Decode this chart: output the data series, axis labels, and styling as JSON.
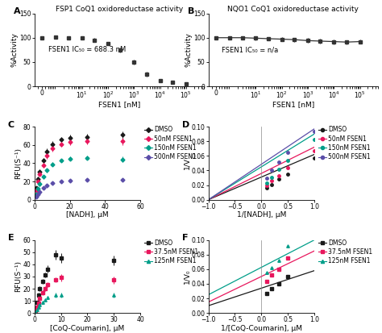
{
  "panel_A": {
    "title": "FSP1 CoQ1 oxidoreductase activity",
    "annotation": "FSEN1 IC₅₀ = 688.3 nM",
    "xlabel": "FSEN1 [nM]",
    "ylabel": "%Activity",
    "ylim": [
      0,
      150
    ],
    "yticks": [
      0,
      50,
      100,
      150
    ],
    "color": "#333333",
    "x_data": [
      0.3,
      1,
      3,
      10,
      30,
      100,
      300,
      1000,
      3000,
      10000,
      30000,
      100000
    ],
    "y_data": [
      100,
      101,
      100,
      99,
      95,
      88,
      75,
      50,
      25,
      12,
      8,
      5
    ],
    "y_err": [
      3,
      3,
      3,
      3,
      4,
      4,
      5,
      5,
      5,
      4,
      3,
      3
    ],
    "ic50": 688.3
  },
  "panel_B": {
    "title": "NQO1 CoQ1 oxidoreductase activity",
    "annotation": "FSEN1 IC₅₀ = n/a",
    "xlabel": "FSEN1 [nM]",
    "ylabel": "%Activity",
    "ylim": [
      0,
      150
    ],
    "yticks": [
      0,
      50,
      100,
      150
    ],
    "color": "#333333",
    "x_data": [
      0.3,
      1,
      3,
      10,
      30,
      100,
      300,
      1000,
      3000,
      10000,
      30000,
      100000
    ],
    "y_data": [
      100,
      100,
      100,
      99,
      98,
      97,
      96,
      94,
      93,
      92,
      91,
      92
    ],
    "y_err": [
      3,
      3,
      3,
      4,
      4,
      4,
      4,
      5,
      5,
      5,
      4,
      4
    ]
  },
  "panel_C": {
    "xlabel": "[NADH], μM",
    "ylabel": "RFU(S⁻¹)",
    "ylim": [
      0,
      80
    ],
    "xlim": [
      0,
      60
    ],
    "yticks": [
      0,
      20,
      40,
      60,
      80
    ],
    "series": [
      {
        "label": "DMSO",
        "color": "#1a1a1a",
        "marker": "D",
        "x": [
          1,
          2,
          3,
          5,
          7,
          10,
          15,
          20,
          30,
          50
        ],
        "y": [
          13,
          23,
          31,
          43,
          53,
          61,
          66,
          68,
          69,
          71
        ],
        "err": [
          2,
          2,
          2,
          3,
          3,
          3,
          3,
          3,
          3,
          4
        ]
      },
      {
        "label": "50nM FSEN1",
        "color": "#e8175d",
        "marker": "D",
        "x": [
          1,
          2,
          3,
          5,
          7,
          10,
          15,
          20,
          30,
          50
        ],
        "y": [
          10,
          20,
          28,
          38,
          48,
          56,
          61,
          63,
          64,
          64
        ],
        "err": [
          2,
          2,
          2,
          3,
          3,
          3,
          3,
          3,
          3,
          4
        ]
      },
      {
        "label": "150nM FSEN1",
        "color": "#009e89",
        "marker": "D",
        "x": [
          1,
          2,
          3,
          5,
          7,
          10,
          15,
          20,
          30,
          50
        ],
        "y": [
          6,
          12,
          17,
          25,
          32,
          39,
          43,
          45,
          46,
          44
        ],
        "err": [
          2,
          2,
          2,
          2,
          2,
          2,
          2,
          2,
          2,
          3
        ]
      },
      {
        "label": "500nM FSEN1",
        "color": "#5b4ea8",
        "marker": "D",
        "x": [
          1,
          2,
          3,
          5,
          7,
          10,
          15,
          20,
          30,
          50
        ],
        "y": [
          3,
          6,
          9,
          13,
          16,
          18,
          20,
          21,
          22,
          22
        ],
        "err": [
          1,
          1,
          1,
          1,
          1,
          1,
          1,
          1,
          2,
          2
        ]
      }
    ]
  },
  "panel_D": {
    "xlabel": "1/[NADH], μM",
    "ylabel": "1/V",
    "ylim": [
      0,
      0.1
    ],
    "xlim": [
      -1,
      1
    ],
    "yticks": [
      0,
      0.02,
      0.04,
      0.06,
      0.08,
      0.1
    ],
    "series": [
      {
        "label": "DMSO",
        "color": "#1a1a1a",
        "marker": "o",
        "x": [
          0.1,
          0.2,
          0.33,
          0.5,
          1.0
        ],
        "y": [
          0.016,
          0.021,
          0.028,
          0.035,
          0.057
        ],
        "line_x": [
          -1.0,
          1.0
        ],
        "line_y": [
          0.0,
          0.062
        ]
      },
      {
        "label": "50nM FSEN1",
        "color": "#e8175d",
        "marker": "o",
        "x": [
          0.1,
          0.2,
          0.33,
          0.5,
          1.0
        ],
        "y": [
          0.019,
          0.026,
          0.033,
          0.044,
          0.067
        ],
        "line_x": [
          -1.0,
          1.0
        ],
        "line_y": [
          0.0,
          0.072
        ]
      },
      {
        "label": "150nM FSEN1",
        "color": "#009e89",
        "marker": "o",
        "x": [
          0.1,
          0.2,
          0.33,
          0.5,
          1.0
        ],
        "y": [
          0.023,
          0.031,
          0.042,
          0.054,
          0.082
        ],
        "line_x": [
          -1.0,
          1.0
        ],
        "line_y": [
          0.0,
          0.09
        ]
      },
      {
        "label": "500nM FSEN1",
        "color": "#5b4ea8",
        "marker": "o",
        "x": [
          0.1,
          0.2,
          0.33,
          0.5,
          1.0
        ],
        "y": [
          0.03,
          0.04,
          0.052,
          0.065,
          0.093
        ],
        "line_x": [
          -1.0,
          1.0
        ],
        "line_y": [
          0.0,
          0.097
        ]
      }
    ]
  },
  "panel_E": {
    "xlabel": "[CoQ-Coumarin], μM",
    "ylabel": "RFU(S⁻¹)",
    "ylim": [
      0,
      60
    ],
    "xlim": [
      0,
      40
    ],
    "yticks": [
      0,
      10,
      20,
      30,
      40,
      50,
      60
    ],
    "series": [
      {
        "label": "DMSO",
        "color": "#1a1a1a",
        "marker": "s",
        "x": [
          0.5,
          1,
          1.5,
          2,
          3,
          4,
          5,
          8,
          10,
          30
        ],
        "y": [
          4,
          9,
          15,
          20,
          26,
          31,
          36,
          48,
          45,
          43
        ],
        "err": [
          1,
          1,
          2,
          2,
          2,
          2,
          3,
          4,
          4,
          4
        ]
      },
      {
        "label": "37.5nM FSEN1",
        "color": "#e8175d",
        "marker": "s",
        "x": [
          0.5,
          1,
          1.5,
          2,
          3,
          4,
          5,
          8,
          10,
          30
        ],
        "y": [
          2,
          5,
          8,
          12,
          17,
          20,
          23,
          27,
          29,
          27
        ],
        "err": [
          1,
          1,
          1,
          1,
          2,
          2,
          2,
          2,
          3,
          3
        ]
      },
      {
        "label": "125nM FSEN1",
        "color": "#009e89",
        "marker": "^",
        "x": [
          0.5,
          1,
          1.5,
          2,
          3,
          4,
          5,
          8,
          10,
          30
        ],
        "y": [
          1,
          3,
          5,
          7,
          9,
          11,
          13,
          15,
          15,
          15
        ],
        "err": [
          1,
          1,
          1,
          1,
          1,
          1,
          1,
          2,
          2,
          2
        ]
      }
    ]
  },
  "panel_F": {
    "xlabel": "1/[CoQ-Coumarin], μM",
    "ylabel": "1/V₀",
    "ylim": [
      0,
      0.1
    ],
    "xlim": [
      -1,
      1
    ],
    "yticks": [
      0,
      0.02,
      0.04,
      0.06,
      0.08,
      0.1
    ],
    "series": [
      {
        "label": "DMSO",
        "color": "#1a1a1a",
        "marker": "s",
        "x": [
          0.1,
          0.2,
          0.33,
          0.5
        ],
        "y": [
          0.027,
          0.033,
          0.04,
          0.05
        ],
        "line_x": [
          -1.0,
          1.0
        ],
        "line_y": [
          0.01,
          0.058
        ]
      },
      {
        "label": "37.5nM FSEN1",
        "color": "#e8175d",
        "marker": "s",
        "x": [
          0.1,
          0.2,
          0.33,
          0.5
        ],
        "y": [
          0.043,
          0.052,
          0.06,
          0.075
        ],
        "line_x": [
          -1.0,
          1.0
        ],
        "line_y": [
          0.015,
          0.085
        ]
      },
      {
        "label": "125nM FSEN1",
        "color": "#009e89",
        "marker": "^",
        "x": [
          0.1,
          0.2,
          0.33,
          0.5
        ],
        "y": [
          0.055,
          0.062,
          0.072,
          0.092
        ],
        "line_x": [
          -1.0,
          1.0
        ],
        "line_y": [
          0.025,
          0.1
        ]
      }
    ]
  },
  "bg_color": "#ffffff",
  "label_fontsize": 6.5,
  "tick_fontsize": 5.5,
  "title_fontsize": 6.5,
  "legend_fontsize": 5.5,
  "annot_fontsize": 6
}
